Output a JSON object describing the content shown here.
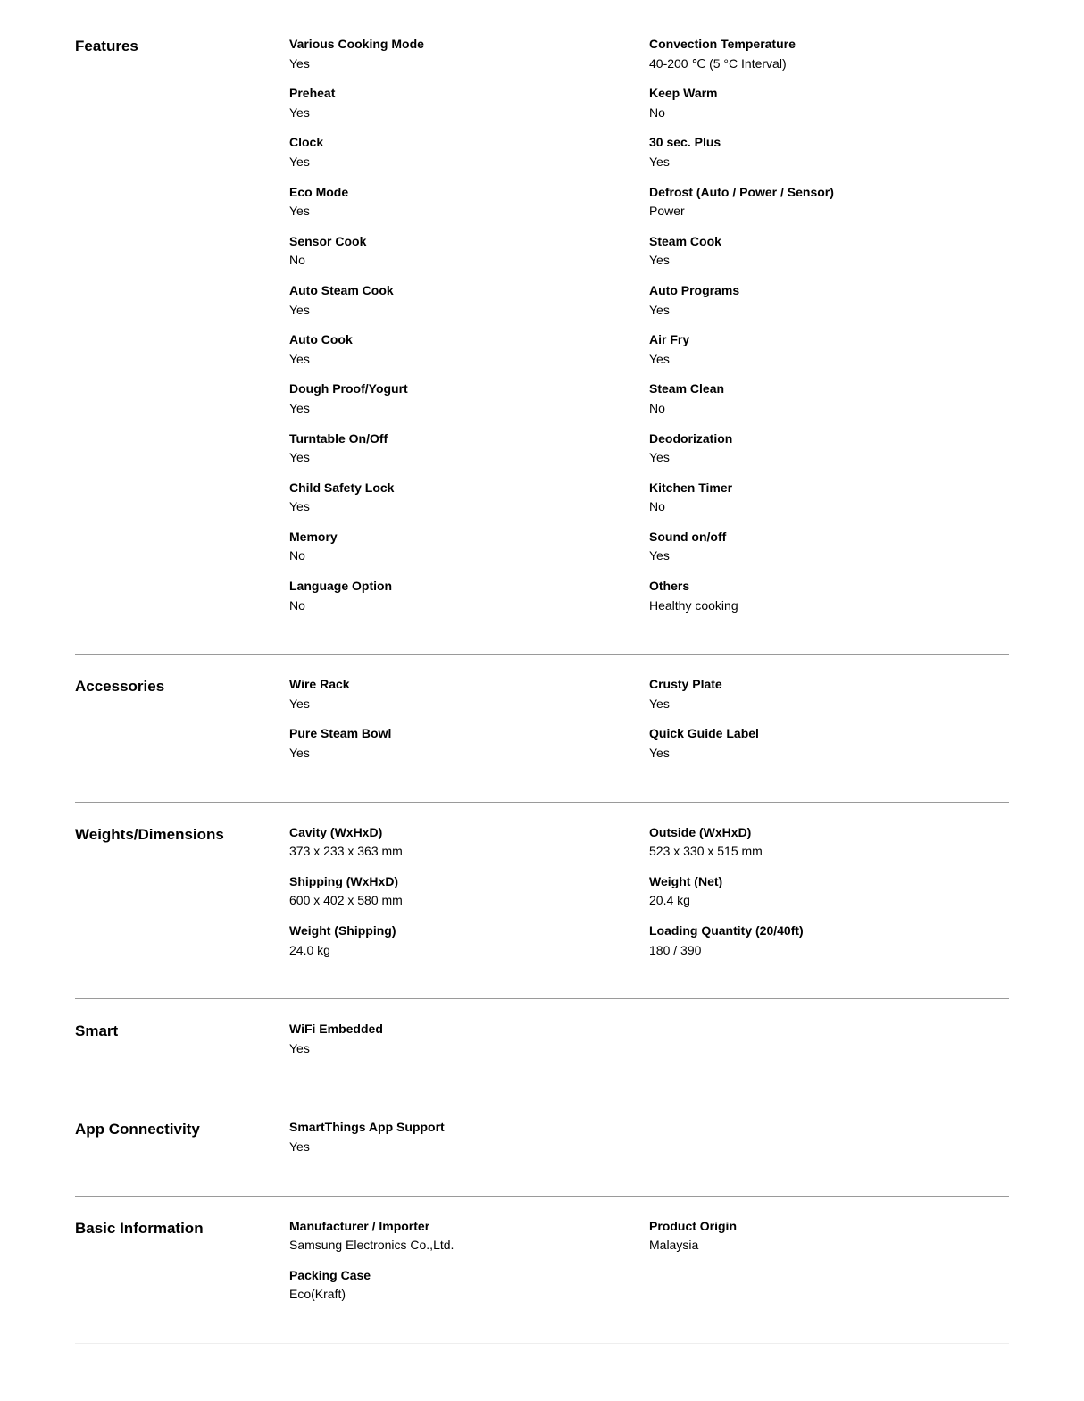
{
  "sections": [
    {
      "title": "Features",
      "left": [
        {
          "label": "Various Cooking Mode",
          "value": "Yes"
        },
        {
          "label": "Preheat",
          "value": "Yes"
        },
        {
          "label": "Clock",
          "value": "Yes"
        },
        {
          "label": "Eco Mode",
          "value": "Yes"
        },
        {
          "label": "Sensor Cook",
          "value": "No"
        },
        {
          "label": "Auto Steam Cook",
          "value": "Yes"
        },
        {
          "label": "Auto Cook",
          "value": "Yes"
        },
        {
          "label": "Dough Proof/Yogurt",
          "value": "Yes"
        },
        {
          "label": "Turntable On/Off",
          "value": "Yes"
        },
        {
          "label": "Child Safety Lock",
          "value": "Yes"
        },
        {
          "label": "Memory",
          "value": "No"
        },
        {
          "label": "Language Option",
          "value": "No"
        }
      ],
      "right": [
        {
          "label": "Convection Temperature",
          "value": "40-200 ℃ (5 °C Interval)"
        },
        {
          "label": "Keep Warm",
          "value": "No"
        },
        {
          "label": "30 sec. Plus",
          "value": "Yes"
        },
        {
          "label": "Defrost (Auto / Power / Sensor)",
          "value": "Power"
        },
        {
          "label": "Steam Cook",
          "value": "Yes"
        },
        {
          "label": "Auto Programs",
          "value": "Yes"
        },
        {
          "label": "Air Fry",
          "value": "Yes"
        },
        {
          "label": "Steam Clean",
          "value": "No"
        },
        {
          "label": "Deodorization",
          "value": "Yes"
        },
        {
          "label": "Kitchen Timer",
          "value": "No"
        },
        {
          "label": "Sound on/off",
          "value": "Yes"
        },
        {
          "label": "Others",
          "value": "Healthy cooking"
        }
      ]
    },
    {
      "title": "Accessories",
      "left": [
        {
          "label": "Wire Rack",
          "value": "Yes"
        },
        {
          "label": "Pure Steam Bowl",
          "value": "Yes"
        }
      ],
      "right": [
        {
          "label": "Crusty Plate",
          "value": "Yes"
        },
        {
          "label": "Quick Guide Label",
          "value": "Yes"
        }
      ]
    },
    {
      "title": "Weights/Dimensions",
      "left": [
        {
          "label": "Cavity (WxHxD)",
          "value": "373 x 233 x 363 mm"
        },
        {
          "label": "Shipping (WxHxD)",
          "value": "600 x 402 x 580 mm"
        },
        {
          "label": "Weight (Shipping)",
          "value": "24.0 kg"
        }
      ],
      "right": [
        {
          "label": "Outside (WxHxD)",
          "value": "523 x 330 x 515 mm"
        },
        {
          "label": "Weight (Net)",
          "value": "20.4 kg"
        },
        {
          "label": "Loading Quantity (20/40ft)",
          "value": "180 / 390"
        }
      ]
    },
    {
      "title": "Smart",
      "left": [
        {
          "label": "WiFi Embedded",
          "value": "Yes"
        }
      ],
      "right": []
    },
    {
      "title": "App Connectivity",
      "left": [
        {
          "label": "SmartThings App Support",
          "value": "Yes"
        }
      ],
      "right": []
    },
    {
      "title": "Basic Information",
      "left": [
        {
          "label": "Manufacturer / Importer",
          "value": "Samsung Electronics Co.,Ltd."
        },
        {
          "label": "Packing Case",
          "value": "Eco(Kraft)"
        }
      ],
      "right": [
        {
          "label": "Product Origin",
          "value": "Malaysia"
        }
      ]
    }
  ]
}
